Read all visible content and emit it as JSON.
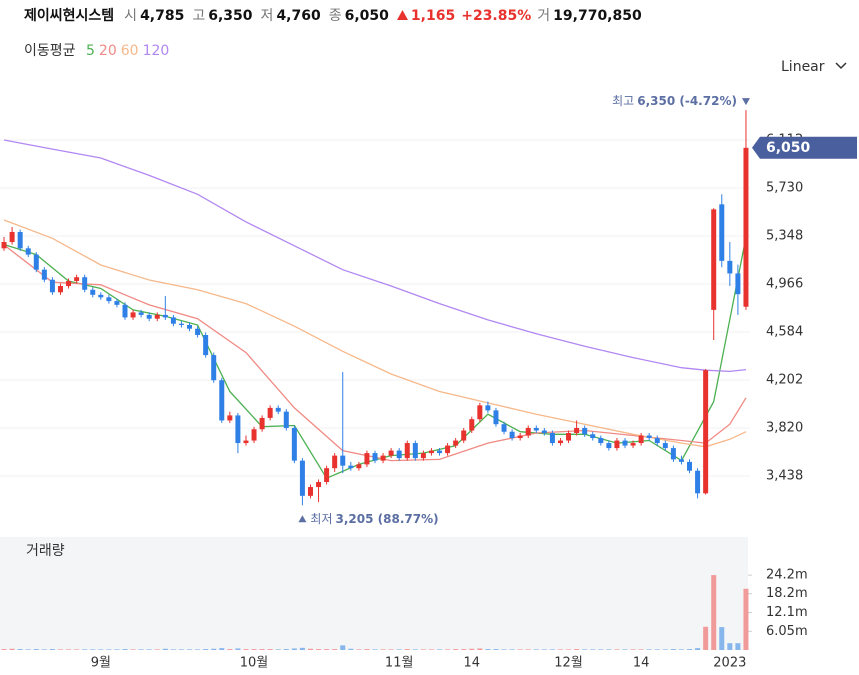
{
  "chart_data": {
    "type": "candlestick",
    "header": {
      "name": "제이씨현시스템",
      "quote": [
        {
          "name": "시",
          "value": 4785,
          "label": "4,785"
        },
        {
          "name": "고",
          "value": 6350,
          "label": "6,350"
        },
        {
          "name": "저",
          "value": 4760,
          "label": "4,760"
        },
        {
          "name": "종",
          "value": 6050,
          "label": "6,050"
        }
      ],
      "change": {
        "value": 1165,
        "label": "1,165"
      },
      "change_percent": {
        "value": 23.85,
        "label": "+23.85%"
      },
      "volume": {
        "name": "거",
        "value": 19770850,
        "label": "19,770,850"
      }
    },
    "ma_title": "이동평균",
    "scale_button": "Linear",
    "up_color": "#e8322e",
    "down_color": "#2f80e6",
    "categories": [
      null,
      null,
      null,
      null,
      null,
      null,
      null,
      null,
      null,
      null,
      null,
      null,
      "9월",
      null,
      null,
      null,
      null,
      null,
      null,
      null,
      null,
      null,
      null,
      null,
      null,
      null,
      null,
      null,
      null,
      null,
      null,
      "10월",
      null,
      null,
      null,
      null,
      null,
      null,
      null,
      null,
      null,
      null,
      null,
      null,
      null,
      null,
      null,
      null,
      null,
      "11월",
      null,
      null,
      null,
      null,
      null,
      null,
      null,
      null,
      "14",
      null,
      null,
      null,
      null,
      null,
      null,
      null,
      null,
      null,
      null,
      null,
      "12월",
      null,
      null,
      null,
      null,
      null,
      null,
      null,
      null,
      "14",
      null,
      null,
      null,
      null,
      null,
      null,
      null,
      null,
      null,
      null,
      "2023",
      null,
      null
    ],
    "candles": [
      [
        5250,
        5340,
        5230,
        5300
      ],
      [
        5300,
        5420,
        5280,
        5380
      ],
      [
        5380,
        5400,
        5230,
        5250
      ],
      [
        5250,
        5270,
        5180,
        5200
      ],
      [
        5200,
        5220,
        5060,
        5080
      ],
      [
        5080,
        5100,
        4980,
        5000
      ],
      [
        5000,
        5020,
        4880,
        4900
      ],
      [
        4900,
        4970,
        4880,
        4950
      ],
      [
        4950,
        5010,
        4930,
        4990
      ],
      [
        4990,
        5040,
        4970,
        5020
      ],
      [
        5020,
        5040,
        4900,
        4920
      ],
      [
        4920,
        4940,
        4860,
        4880
      ],
      [
        4880,
        4900,
        4840,
        4860
      ],
      [
        4860,
        4880,
        4810,
        4830
      ],
      [
        4830,
        4850,
        4780,
        4800
      ],
      [
        4800,
        4820,
        4680,
        4700
      ],
      [
        4700,
        4760,
        4680,
        4740
      ],
      [
        4740,
        4760,
        4700,
        4720
      ],
      [
        4720,
        4740,
        4670,
        4690
      ],
      [
        4690,
        4740,
        4670,
        4720
      ],
      [
        4720,
        4870,
        4680,
        4700
      ],
      [
        4700,
        4720,
        4630,
        4650
      ],
      [
        4650,
        4670,
        4620,
        4640
      ],
      [
        4640,
        4660,
        4590,
        4610
      ],
      [
        4610,
        4630,
        4540,
        4560
      ],
      [
        4560,
        4580,
        4380,
        4400
      ],
      [
        4400,
        4420,
        4180,
        4200
      ],
      [
        4200,
        4220,
        3860,
        3880
      ],
      [
        3880,
        3950,
        3860,
        3920
      ],
      [
        3920,
        3940,
        3620,
        3700
      ],
      [
        3700,
        3760,
        3680,
        3720
      ],
      [
        3720,
        3830,
        3700,
        3810
      ],
      [
        3810,
        3920,
        3790,
        3900
      ],
      [
        3900,
        4000,
        3880,
        3980
      ],
      [
        3980,
        4000,
        3930,
        3950
      ],
      [
        3950,
        3970,
        3800,
        3820
      ],
      [
        3820,
        3840,
        3540,
        3560
      ],
      [
        3560,
        3580,
        3205,
        3280
      ],
      [
        3280,
        3370,
        3260,
        3350
      ],
      [
        3350,
        3410,
        3230,
        3390
      ],
      [
        3390,
        3520,
        3370,
        3500
      ],
      [
        3500,
        3620,
        3470,
        3600
      ],
      [
        3600,
        4265,
        3460,
        3520
      ],
      [
        3520,
        3550,
        3480,
        3500
      ],
      [
        3500,
        3550,
        3480,
        3530
      ],
      [
        3530,
        3640,
        3510,
        3620
      ],
      [
        3620,
        3640,
        3540,
        3560
      ],
      [
        3560,
        3620,
        3540,
        3600
      ],
      [
        3600,
        3660,
        3580,
        3640
      ],
      [
        3640,
        3660,
        3560,
        3580
      ],
      [
        3580,
        3720,
        3560,
        3700
      ],
      [
        3700,
        3720,
        3560,
        3580
      ],
      [
        3580,
        3640,
        3560,
        3620
      ],
      [
        3620,
        3660,
        3600,
        3640
      ],
      [
        3640,
        3660,
        3600,
        3620
      ],
      [
        3620,
        3700,
        3600,
        3680
      ],
      [
        3680,
        3740,
        3660,
        3720
      ],
      [
        3720,
        3820,
        3700,
        3800
      ],
      [
        3800,
        3910,
        3780,
        3890
      ],
      [
        3890,
        4020,
        3870,
        4000
      ],
      [
        4000,
        4030,
        3940,
        3960
      ],
      [
        3960,
        3980,
        3830,
        3850
      ],
      [
        3850,
        3870,
        3770,
        3790
      ],
      [
        3790,
        3810,
        3720,
        3740
      ],
      [
        3740,
        3780,
        3720,
        3760
      ],
      [
        3760,
        3840,
        3740,
        3820
      ],
      [
        3820,
        3840,
        3780,
        3800
      ],
      [
        3800,
        3820,
        3760,
        3780
      ],
      [
        3780,
        3800,
        3680,
        3700
      ],
      [
        3700,
        3740,
        3680,
        3720
      ],
      [
        3720,
        3800,
        3700,
        3780
      ],
      [
        3780,
        3880,
        3760,
        3820
      ],
      [
        3820,
        3840,
        3750,
        3770
      ],
      [
        3770,
        3790,
        3720,
        3740
      ],
      [
        3740,
        3760,
        3680,
        3700
      ],
      [
        3700,
        3720,
        3640,
        3660
      ],
      [
        3660,
        3740,
        3640,
        3720
      ],
      [
        3720,
        3740,
        3660,
        3680
      ],
      [
        3680,
        3720,
        3660,
        3700
      ],
      [
        3700,
        3780,
        3680,
        3760
      ],
      [
        3760,
        3780,
        3720,
        3740
      ],
      [
        3740,
        3760,
        3680,
        3700
      ],
      [
        3700,
        3720,
        3640,
        3660
      ],
      [
        3660,
        3680,
        3550,
        3570
      ],
      [
        3570,
        3600,
        3530,
        3550
      ],
      [
        3550,
        3570,
        3460,
        3480
      ],
      [
        3480,
        3500,
        3260,
        3300
      ],
      [
        3300,
        4290,
        3290,
        4280
      ],
      [
        4760,
        5570,
        4520,
        5560
      ],
      [
        5600,
        5680,
        5100,
        5150
      ],
      [
        5150,
        5300,
        4950,
        5050
      ],
      [
        5050,
        5120,
        4720,
        4885
      ],
      [
        4785,
        6350,
        4760,
        6050
      ]
    ],
    "ylim": [
      3008,
      6526
    ],
    "yticks": [
      {
        "value": 3438,
        "label": "3,438"
      },
      {
        "value": 3820,
        "label": "3,820"
      },
      {
        "value": 4202,
        "label": "4,202"
      },
      {
        "value": 4584,
        "label": "4,584"
      },
      {
        "value": 4966,
        "label": "4,966"
      },
      {
        "value": 5348,
        "label": "5,348"
      },
      {
        "value": 5730,
        "label": "5,730"
      },
      {
        "value": 6112,
        "label": "6,112"
      }
    ],
    "grid": true,
    "last_price": {
      "value": 6050,
      "label": "6,050"
    },
    "high_marker": {
      "text": "최고",
      "value": 6350,
      "label": "6,350 (-4.72%)"
    },
    "low_marker": {
      "text": "최저",
      "value": 3205,
      "label": "3,205 (88.77%)"
    },
    "ma": [
      {
        "name": "5",
        "color": "#4cb050",
        "x": [
          0,
          4,
          8,
          12,
          16,
          20,
          24,
          28,
          32,
          36,
          40,
          44,
          48,
          52,
          56,
          60,
          64,
          68,
          72,
          76,
          80,
          84,
          88,
          92
        ],
        "values": [
          5280,
          5200,
          4990,
          4930,
          4760,
          4710,
          4640,
          4110,
          3830,
          3840,
          3420,
          3530,
          3600,
          3620,
          3680,
          3930,
          3790,
          3770,
          3770,
          3700,
          3720,
          3560,
          4030,
          5340
        ]
      },
      {
        "name": "20",
        "color": "#f08a84",
        "x": [
          0,
          6,
          12,
          18,
          24,
          30,
          36,
          42,
          48,
          54,
          60,
          66,
          72,
          78,
          84,
          87,
          90,
          92
        ],
        "values": [
          5277,
          4980,
          4960,
          4800,
          4690,
          4420,
          3980,
          3640,
          3560,
          3570,
          3700,
          3780,
          3800,
          3760,
          3720,
          3700,
          3850,
          4060
        ]
      },
      {
        "name": "60",
        "color": "#f6b88a",
        "x": [
          0,
          6,
          12,
          18,
          24,
          30,
          36,
          42,
          48,
          54,
          60,
          66,
          72,
          78,
          84,
          87,
          90,
          92
        ],
        "values": [
          5475,
          5330,
          5117,
          4998,
          4920,
          4810,
          4630,
          4430,
          4250,
          4110,
          4020,
          3930,
          3850,
          3770,
          3700,
          3670,
          3730,
          3790
        ]
      },
      {
        "name": "120",
        "color": "#b287f2",
        "x": [
          0,
          6,
          12,
          18,
          24,
          30,
          36,
          42,
          48,
          54,
          60,
          66,
          72,
          78,
          84,
          87,
          90,
          92
        ],
        "values": [
          6112,
          6040,
          5969,
          5830,
          5680,
          5460,
          5270,
          5080,
          4950,
          4810,
          4680,
          4570,
          4470,
          4380,
          4300,
          4280,
          4270,
          4285
        ]
      }
    ],
    "volume": {
      "title": "거래량",
      "up_color": "#f09b9a",
      "down_color": "#86b6ec",
      "ylim": [
        0,
        36.5
      ],
      "yticks": [
        {
          "value": 6.05,
          "label": "6.05m"
        },
        {
          "value": 12.1,
          "label": "12.1m"
        },
        {
          "value": 18.2,
          "label": "18.2m"
        },
        {
          "value": 24.2,
          "label": "24.2m"
        }
      ],
      "values": [
        0.3,
        0.4,
        0.3,
        0.2,
        0.3,
        0.2,
        0.3,
        0.2,
        0.2,
        0.2,
        0.2,
        0.2,
        0.2,
        0.2,
        0.2,
        0.3,
        0.2,
        0.2,
        0.2,
        0.2,
        0.4,
        0.2,
        0.2,
        0.2,
        0.2,
        0.3,
        0.4,
        0.6,
        0.3,
        0.5,
        0.3,
        0.3,
        0.3,
        0.3,
        0.2,
        0.3,
        0.5,
        0.7,
        0.4,
        0.3,
        0.3,
        0.3,
        1.5,
        0.4,
        0.2,
        0.3,
        0.2,
        0.2,
        0.2,
        0.2,
        0.3,
        0.2,
        0.2,
        0.2,
        0.2,
        0.2,
        0.3,
        0.3,
        0.4,
        0.5,
        0.3,
        0.3,
        0.2,
        0.2,
        0.2,
        0.2,
        0.2,
        0.2,
        0.2,
        0.2,
        0.2,
        0.3,
        0.2,
        0.2,
        0.2,
        0.2,
        0.2,
        0.2,
        0.2,
        0.2,
        0.2,
        0.2,
        0.2,
        0.3,
        0.2,
        0.3,
        0.6,
        7.5,
        24.2,
        7.4,
        2.2,
        2.2,
        19.77
      ]
    }
  }
}
